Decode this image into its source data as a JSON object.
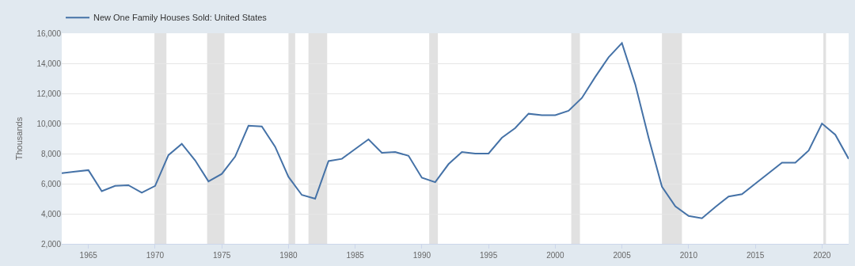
{
  "chart_data": {
    "type": "line",
    "ylabel": "Thousands",
    "x": [
      1963,
      1964,
      1965,
      1966,
      1967,
      1968,
      1969,
      1970,
      1971,
      1972,
      1973,
      1974,
      1975,
      1976,
      1977,
      1978,
      1979,
      1980,
      1981,
      1982,
      1983,
      1984,
      1985,
      1986,
      1987,
      1988,
      1989,
      1990,
      1991,
      1992,
      1993,
      1994,
      1995,
      1996,
      1997,
      1998,
      1999,
      2000,
      2001,
      2002,
      2003,
      2004,
      2005,
      2006,
      2007,
      2008,
      2009,
      2010,
      2011,
      2012,
      2013,
      2014,
      2015,
      2016,
      2017,
      2018,
      2019,
      2020,
      2021,
      2022
    ],
    "series": [
      {
        "name": "New One Family Houses Sold: United States",
        "color": "#4572a7",
        "values": [
          6700,
          6800,
          6900,
          5500,
          5850,
          5900,
          5400,
          5850,
          7900,
          8650,
          7550,
          6150,
          6650,
          7800,
          9850,
          9800,
          8450,
          6450,
          5250,
          5000,
          7500,
          7650,
          8300,
          8950,
          8050,
          8100,
          7850,
          6400,
          6100,
          7300,
          8100,
          8000,
          8000,
          9050,
          9700,
          10650,
          10550,
          10550,
          10850,
          11700,
          13100,
          14400,
          15350,
          12600,
          9050,
          5800,
          4500,
          3850,
          3700,
          4450,
          5150,
          5300,
          6000,
          6700,
          7400,
          7400,
          8200,
          10000,
          9250,
          7650
        ]
      }
    ],
    "xlim": [
      1963,
      2022
    ],
    "xticks": [
      1965,
      1970,
      1975,
      1980,
      1985,
      1990,
      1995,
      2000,
      2005,
      2010,
      2015,
      2020
    ],
    "ylim": [
      2000,
      16000
    ],
    "yticks": [
      {
        "value": 2000,
        "label": "2,000"
      },
      {
        "value": 4000,
        "label": "4,000"
      },
      {
        "value": 6000,
        "label": "6,000"
      },
      {
        "value": 8000,
        "label": "8,000"
      },
      {
        "value": 10000,
        "label": "10,000"
      },
      {
        "value": 12000,
        "label": "12,000"
      },
      {
        "value": 14000,
        "label": "14,000"
      },
      {
        "value": 16000,
        "label": "16,000"
      }
    ],
    "bands": [
      {
        "axis": "x",
        "from": 1969.95,
        "to": 1970.85,
        "color": "#e1e1e1"
      },
      {
        "axis": "x",
        "from": 1973.9,
        "to": 1975.2,
        "color": "#e1e1e1"
      },
      {
        "axis": "x",
        "from": 1980.0,
        "to": 1980.5,
        "color": "#e1e1e1"
      },
      {
        "axis": "x",
        "from": 1981.5,
        "to": 1982.9,
        "color": "#e1e1e1"
      },
      {
        "axis": "x",
        "from": 1990.55,
        "to": 1991.2,
        "color": "#e1e1e1"
      },
      {
        "axis": "x",
        "from": 2001.2,
        "to": 2001.85,
        "color": "#e1e1e1"
      },
      {
        "axis": "x",
        "from": 2008.0,
        "to": 2009.5,
        "color": "#e1e1e1"
      },
      {
        "axis": "x",
        "from": 2020.1,
        "to": 2020.3,
        "color": "#e1e1e1"
      }
    ],
    "grid": "y",
    "legend": "top left",
    "marker": "none",
    "line_style": "solid"
  }
}
